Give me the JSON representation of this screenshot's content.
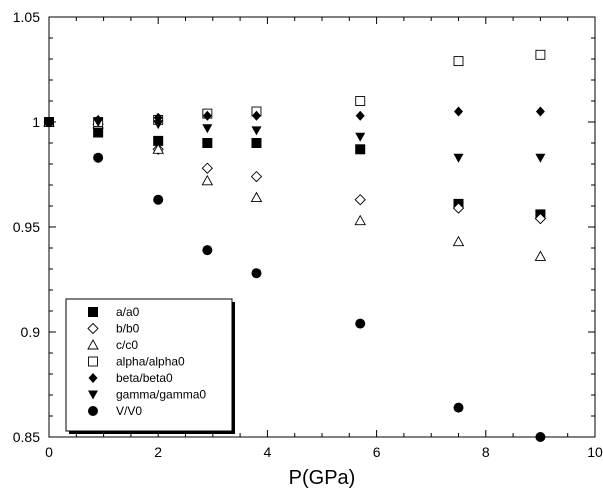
{
  "chart_data": {
    "type": "scatter",
    "xlabel": "P(GPa)",
    "ylabel": "",
    "xlim": [
      0,
      10
    ],
    "ylim": [
      0.85,
      1.05
    ],
    "x_ticks": [
      0,
      2,
      4,
      6,
      8,
      10
    ],
    "y_ticks": [
      0.85,
      0.9,
      0.95,
      1,
      1.05
    ],
    "x_tick_labels": [
      "0",
      "2",
      "4",
      "6",
      "8",
      "10"
    ],
    "y_tick_labels": [
      "0.85",
      "0.9",
      "0.95",
      "1",
      "1.05"
    ],
    "grid": false,
    "legend_position": "bottom-left",
    "series": [
      {
        "name": "a/a0",
        "marker": "square-filled",
        "points": [
          [
            0,
            1.0
          ],
          [
            0.9,
            0.995
          ],
          [
            2.0,
            0.991
          ],
          [
            2.9,
            0.99
          ],
          [
            3.8,
            0.99
          ],
          [
            5.7,
            0.987
          ],
          [
            7.5,
            0.961
          ],
          [
            9.0,
            0.956
          ]
        ]
      },
      {
        "name": "b/b0",
        "marker": "diamond-open",
        "points": [
          [
            0,
            1.0
          ],
          [
            0.9,
            0.999
          ],
          [
            2.0,
            0.987
          ],
          [
            2.9,
            0.978
          ],
          [
            3.8,
            0.974
          ],
          [
            5.7,
            0.963
          ],
          [
            7.5,
            0.959
          ],
          [
            9.0,
            0.954
          ]
        ]
      },
      {
        "name": "c/c0",
        "marker": "triangle-up-open",
        "points": [
          [
            0,
            1.0
          ],
          [
            0.9,
            0.999
          ],
          [
            2.0,
            0.987
          ],
          [
            2.9,
            0.972
          ],
          [
            3.8,
            0.964
          ],
          [
            5.7,
            0.953
          ],
          [
            7.5,
            0.943
          ],
          [
            9.0,
            0.936
          ]
        ]
      },
      {
        "name": "alpha/alpha0",
        "marker": "square-open",
        "points": [
          [
            0,
            1.0
          ],
          [
            0.9,
            1.0
          ],
          [
            2.0,
            1.001
          ],
          [
            2.9,
            1.004
          ],
          [
            3.8,
            1.005
          ],
          [
            5.7,
            1.01
          ],
          [
            7.5,
            1.029
          ],
          [
            9.0,
            1.032
          ]
        ]
      },
      {
        "name": "beta/beta0",
        "marker": "diamond-filled",
        "points": [
          [
            0,
            1.0
          ],
          [
            0.9,
            1.001
          ],
          [
            2.0,
            1.002
          ],
          [
            2.9,
            1.003
          ],
          [
            3.8,
            1.003
          ],
          [
            5.7,
            1.003
          ],
          [
            7.5,
            1.005
          ],
          [
            9.0,
            1.005
          ]
        ]
      },
      {
        "name": "gamma/gamma0",
        "marker": "triangle-down-filled",
        "points": [
          [
            0,
            1.0
          ],
          [
            0.9,
            1.0
          ],
          [
            2.0,
            0.999
          ],
          [
            2.9,
            0.997
          ],
          [
            3.8,
            0.996
          ],
          [
            5.7,
            0.993
          ],
          [
            7.5,
            0.983
          ],
          [
            9.0,
            0.983
          ]
        ]
      },
      {
        "name": "V/V0",
        "marker": "circle-filled",
        "points": [
          [
            0,
            1.0
          ],
          [
            0.9,
            0.983
          ],
          [
            2.0,
            0.963
          ],
          [
            2.9,
            0.939
          ],
          [
            3.8,
            0.928
          ],
          [
            5.7,
            0.904
          ],
          [
            7.5,
            0.864
          ],
          [
            9.0,
            0.85
          ]
        ]
      }
    ]
  }
}
